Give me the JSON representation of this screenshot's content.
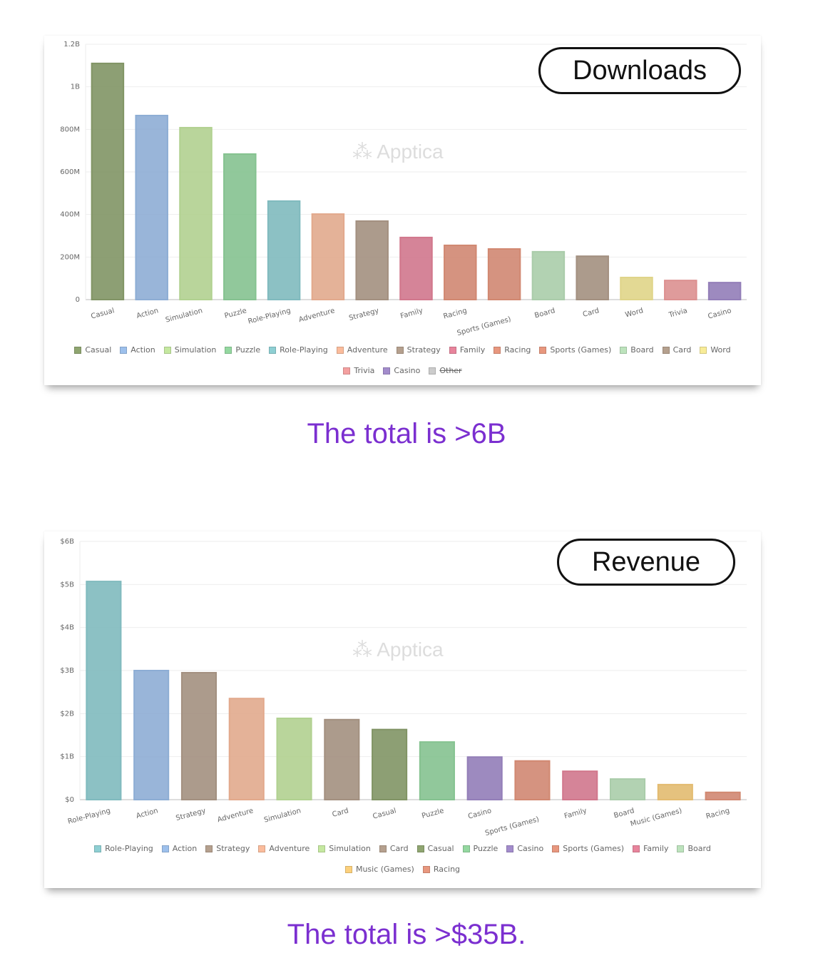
{
  "chart_data": [
    {
      "type": "bar",
      "title": "Downloads",
      "ylim": [
        0,
        1.2
      ],
      "yunit": "B",
      "yticks": [
        "0",
        "200M",
        "400M",
        "600M",
        "800M",
        "1B",
        "1.2B"
      ],
      "categories": [
        "Casual",
        "Action",
        "Simulation",
        "Puzzle",
        "Role-Playing",
        "Adventure",
        "Strategy",
        "Family",
        "Racing",
        "Sports (Games)",
        "Board",
        "Card",
        "Word",
        "Trivia",
        "Casino"
      ],
      "values": [
        1.11,
        0.865,
        0.808,
        0.684,
        0.463,
        0.402,
        0.369,
        0.292,
        0.255,
        0.238,
        0.225,
        0.204,
        0.104,
        0.09,
        0.08
      ],
      "colors": [
        "#8fa570",
        "#9dc0ec",
        "#c5e8a0",
        "#94d8a0",
        "#8ecfd3",
        "#fbbc9c",
        "#b5a08e",
        "#e8849c",
        "#e8977e",
        "#e8977e",
        "#bde3bd",
        "#b5a08e",
        "#f8ec98",
        "#f4a0a0",
        "#a38ccc"
      ],
      "legend": [
        "Casual",
        "Action",
        "Simulation",
        "Puzzle",
        "Role-Playing",
        "Adventure",
        "Strategy",
        "Family",
        "Racing",
        "Sports (Games)",
        "Board",
        "Card",
        "Word",
        "Trivia",
        "Casino",
        "Other"
      ],
      "legend_colors": [
        "#8fa570",
        "#9dc0ec",
        "#c5e8a0",
        "#94d8a0",
        "#8ecfd3",
        "#fbbc9c",
        "#b5a08e",
        "#e8849c",
        "#e8977e",
        "#e8977e",
        "#bde3bd",
        "#b5a08e",
        "#f8ec98",
        "#f4a0a0",
        "#a38ccc",
        "#cccccc"
      ],
      "legend_hidden": [
        "Other"
      ],
      "legend_placement": "bottom",
      "grid": true
    },
    {
      "type": "bar",
      "title": "Revenue",
      "ylim": [
        0,
        6
      ],
      "yunit": "$B",
      "yticks": [
        "$0",
        "$1B",
        "$2B",
        "$3B",
        "$4B",
        "$5B",
        "$6B"
      ],
      "categories": [
        "Role-Playing",
        "Action",
        "Strategy",
        "Adventure",
        "Simulation",
        "Card",
        "Casual",
        "Puzzle",
        "Casino",
        "Sports (Games)",
        "Family",
        "Board",
        "Music (Games)",
        "Racing"
      ],
      "values": [
        5.07,
        3.0,
        2.95,
        2.35,
        1.89,
        1.86,
        1.63,
        1.34,
        0.99,
        0.9,
        0.66,
        0.48,
        0.35,
        0.17
      ],
      "colors": [
        "#8ecfd3",
        "#9dc0ec",
        "#b5a08e",
        "#fbbc9c",
        "#c5e8a0",
        "#b5a08e",
        "#8fa570",
        "#94d8a0",
        "#a38ccc",
        "#e8977e",
        "#e8849c",
        "#bde3bd",
        "#fcd07c",
        "#e8977e"
      ],
      "legend": [
        "Role-Playing",
        "Action",
        "Strategy",
        "Adventure",
        "Simulation",
        "Card",
        "Casual",
        "Puzzle",
        "Casino",
        "Sports (Games)",
        "Family",
        "Board",
        "Music (Games)",
        "Racing"
      ],
      "legend_colors": [
        "#8ecfd3",
        "#9dc0ec",
        "#b5a08e",
        "#fbbc9c",
        "#c5e8a0",
        "#b5a08e",
        "#8fa570",
        "#94d8a0",
        "#a38ccc",
        "#e8977e",
        "#e8849c",
        "#bde3bd",
        "#fcd07c",
        "#e8977e"
      ],
      "legend_hidden": [],
      "legend_placement": "bottom",
      "grid": true
    }
  ],
  "watermark": "Apptica",
  "captions": [
    "The total is >6B",
    "The total is >$35B."
  ]
}
